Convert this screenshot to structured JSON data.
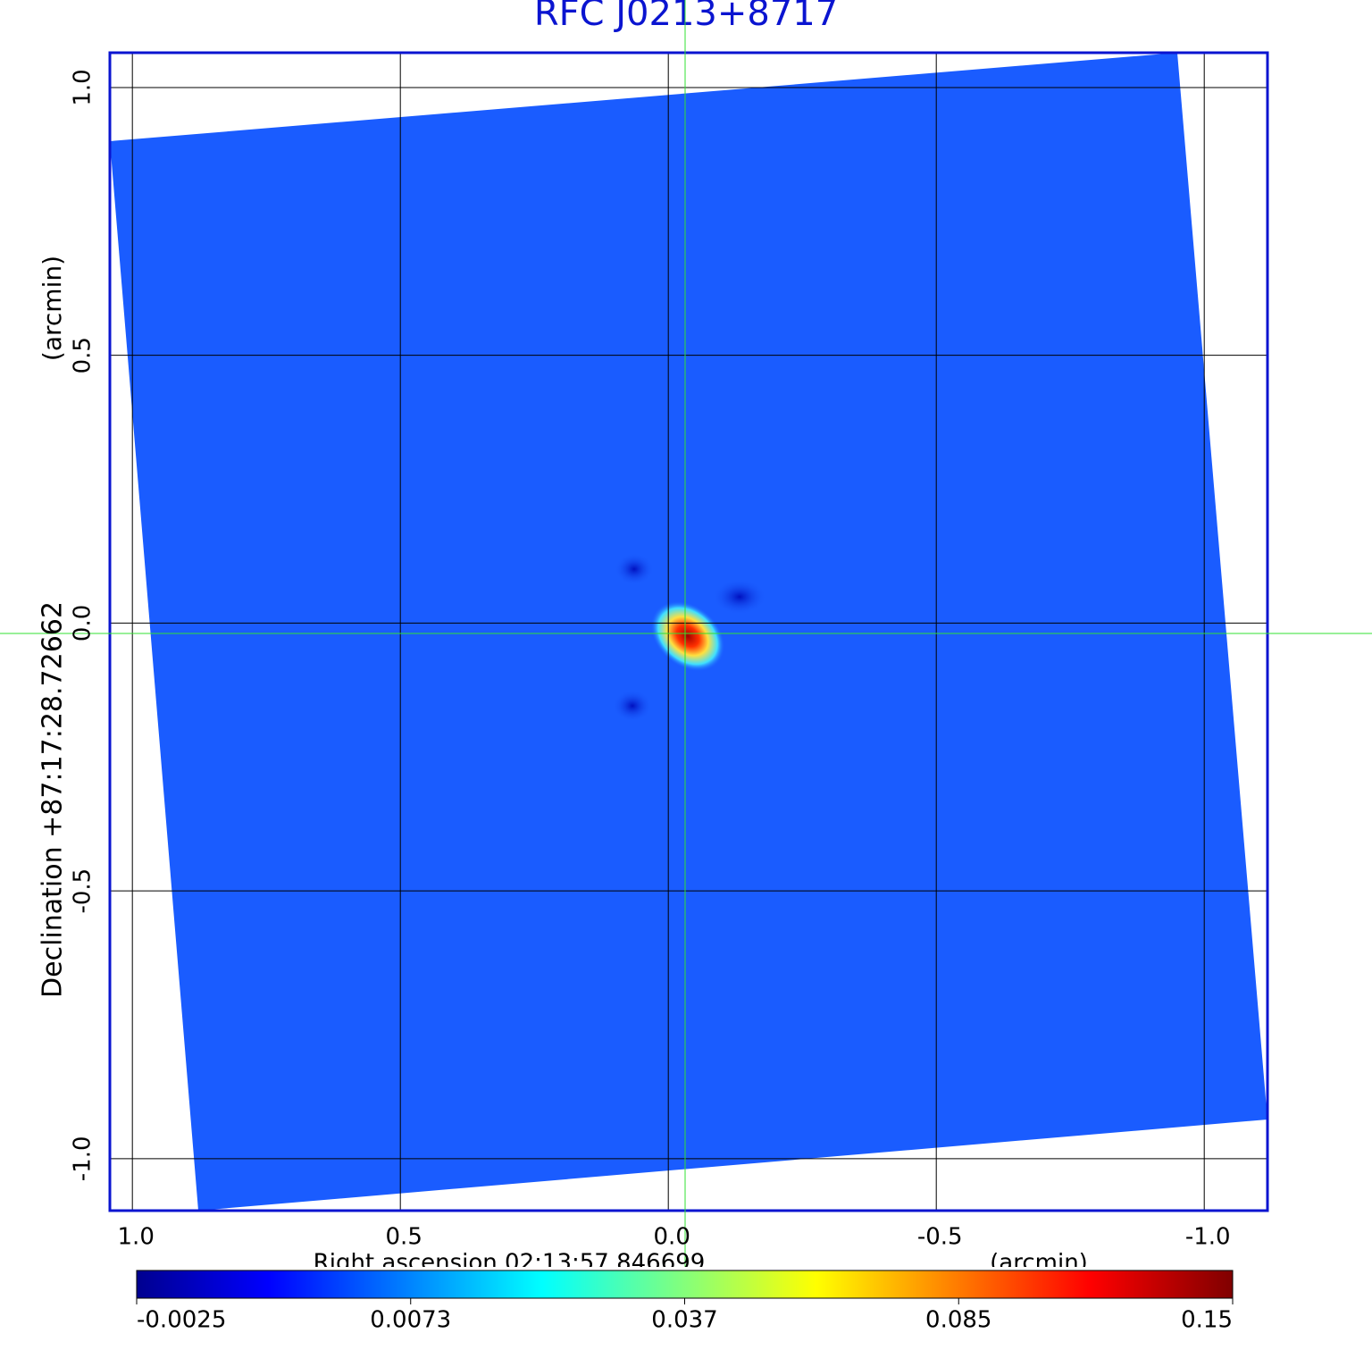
{
  "chart_data": {
    "type": "image",
    "title": "RFC J0213+8717",
    "xlabel": "Right ascension  02:13:57.846699",
    "xunit": "(arcmin)",
    "ylabel": "Declination  +87:17:28.72662",
    "yunit": "(arcmin)",
    "xlim": [
      1.042,
      -1.118
    ],
    "ylim": [
      -1.097,
      1.065
    ],
    "xticks": [
      {
        "value": 1,
        "label": "1.0"
      },
      0.5,
      {
        "value": 0,
        "label": "0.0"
      },
      -0.5,
      {
        "value": -1,
        "label": "-1.0"
      }
    ],
    "yticks": [
      {
        "value": -1,
        "label": "-1.0"
      },
      -0.5,
      {
        "value": 0,
        "label": "0.0"
      },
      0.5,
      {
        "value": 1,
        "label": "1.0"
      }
    ],
    "grid": true,
    "colorbar": {
      "ticks": [
        -0.0025,
        0.0073,
        0.037,
        0.085,
        0.15
      ]
    }
  }
}
